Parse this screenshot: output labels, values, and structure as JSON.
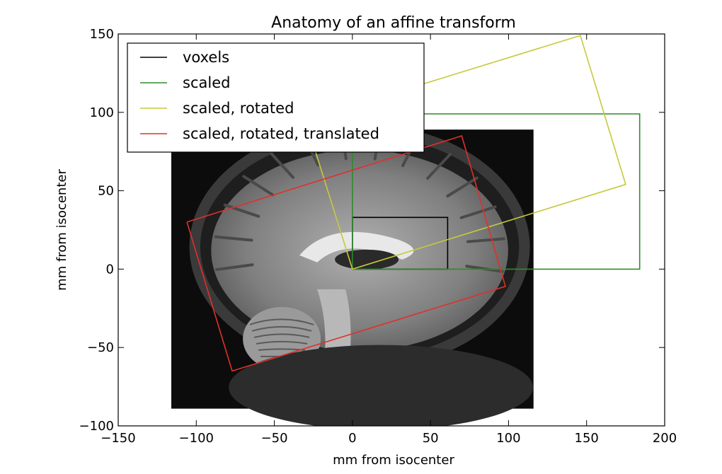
{
  "chart_data": {
    "type": "line",
    "title": "Anatomy of an affine transform",
    "xlabel": "mm from isocenter",
    "ylabel": "mm from isocenter",
    "xlim": [
      -150,
      200
    ],
    "ylim": [
      -100,
      150
    ],
    "xticks": [
      -150,
      -100,
      -50,
      0,
      50,
      100,
      150,
      200
    ],
    "yticks": [
      -100,
      -50,
      0,
      50,
      100,
      150
    ],
    "xtick_labels": [
      "−150",
      "−100",
      "−50",
      "0",
      "50",
      "100",
      "150",
      "200"
    ],
    "ytick_labels": [
      "−100",
      "−50",
      "0",
      "50",
      "100",
      "150"
    ],
    "grid": false,
    "legend_position": "upper-left",
    "background_image": {
      "description_icon": "brain-mri-sagittal-icon",
      "extent": [
        -116,
        116,
        -89,
        89
      ]
    },
    "series": [
      {
        "name": "voxels",
        "color": "#000000",
        "points": [
          [
            0,
            0
          ],
          [
            61,
            0
          ],
          [
            61,
            33
          ],
          [
            0,
            33
          ],
          [
            0,
            0
          ]
        ]
      },
      {
        "name": "scaled",
        "color": "#2e8b2e",
        "points": [
          [
            0,
            0
          ],
          [
            184,
            0
          ],
          [
            184,
            99
          ],
          [
            0,
            99
          ],
          [
            0,
            0
          ]
        ]
      },
      {
        "name": "scaled, rotated",
        "color": "#c8c83c",
        "points": [
          [
            0,
            0
          ],
          [
            175,
            54
          ],
          [
            146,
            149
          ],
          [
            -30,
            95
          ],
          [
            0,
            0
          ]
        ]
      },
      {
        "name": "scaled, rotated, translated",
        "color": "#e0302a",
        "points": [
          [
            -106,
            30
          ],
          [
            70,
            85
          ],
          [
            98,
            -11
          ],
          [
            -77,
            -65
          ],
          [
            -106,
            30
          ]
        ]
      }
    ]
  }
}
